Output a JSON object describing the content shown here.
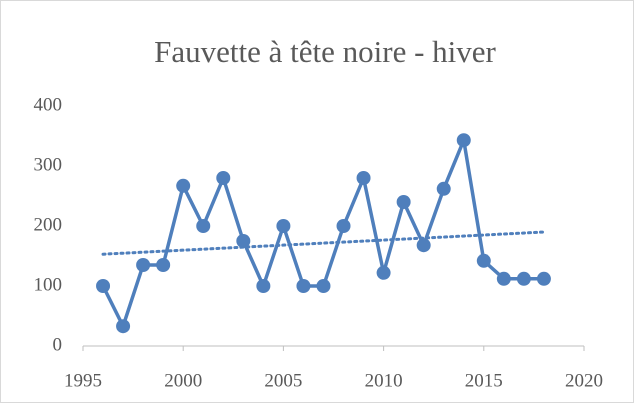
{
  "chart_data": {
    "type": "line",
    "title": "Fauvette à tête noire - hiver",
    "x": [
      1996,
      1997,
      1998,
      1999,
      2000,
      2001,
      2002,
      2003,
      2004,
      2005,
      2006,
      2007,
      2008,
      2009,
      2010,
      2011,
      2012,
      2013,
      2014,
      2015,
      2016,
      2017,
      2018
    ],
    "series": [
      {
        "color": "#4f7fbc",
        "values": [
          100,
          33,
          135,
          135,
          267,
          200,
          280,
          175,
          100,
          200,
          100,
          100,
          200,
          280,
          122,
          240,
          168,
          262,
          343,
          142,
          112,
          112,
          112
        ]
      }
    ],
    "trendline": {
      "x": [
        1996,
        2018
      ],
      "values": [
        153,
        190
      ],
      "color": "#4f7fbc"
    },
    "xlim": [
      1995,
      2020
    ],
    "xticks": [
      1995,
      2000,
      2005,
      2010,
      2015,
      2020
    ],
    "ylim": [
      0,
      400
    ],
    "yticks": [
      0,
      100,
      200,
      300,
      400
    ],
    "grid": false
  }
}
